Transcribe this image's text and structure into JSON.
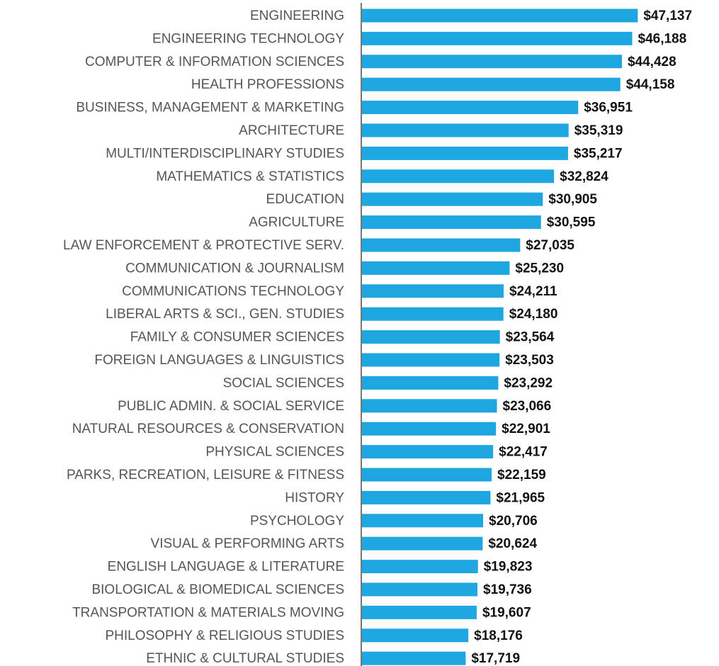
{
  "chart_data": {
    "type": "barh",
    "categories": [
      "ENGINEERING",
      "ENGINEERING TECHNOLOGY",
      "COMPUTER & INFORMATION SCIENCES",
      "HEALTH PROFESSIONS",
      "BUSINESS, MANAGEMENT & MARKETING",
      "ARCHITECTURE",
      "MULTI/INTERDISCIPLINARY STUDIES",
      "MATHEMATICS & STATISTICS",
      "EDUCATION",
      "AGRICULTURE",
      "LAW ENFORCEMENT & PROTECTIVE SERV.",
      "COMMUNICATION & JOURNALISM",
      "COMMUNICATIONS TECHNOLOGY",
      "LIBERAL ARTS & SCI., GEN. STUDIES",
      "FAMILY & CONSUMER SCIENCES",
      "FOREIGN LANGUAGES & LINGUISTICS",
      "SOCIAL SCIENCES",
      "PUBLIC ADMIN. & SOCIAL SERVICE",
      "NATURAL RESOURCES & CONSERVATION",
      "PHYSICAL SCIENCES",
      "PARKS, RECREATION, LEISURE & FITNESS",
      "HISTORY",
      "PSYCHOLOGY",
      "VISUAL & PERFORMING ARTS",
      "ENGLISH LANGUAGE & LITERATURE",
      "BIOLOGICAL & BIOMEDICAL SCIENCES",
      "TRANSPORTATION & MATERIALS MOVING",
      "PHILOSOPHY & RELIGIOUS STUDIES",
      "ETHNIC & CULTURAL STUDIES"
    ],
    "values": [
      47137,
      46188,
      44428,
      44158,
      36951,
      35319,
      35217,
      32824,
      30905,
      30595,
      27035,
      25230,
      24211,
      24180,
      23564,
      23503,
      23292,
      23066,
      22901,
      22417,
      22159,
      21965,
      20706,
      20624,
      19823,
      19736,
      19607,
      18176,
      17719
    ],
    "value_labels": [
      "$47,137",
      "$46,188",
      "$44,428",
      "$44,158",
      "$36,951",
      "$35,319",
      "$35,217",
      "$32,824",
      "$30,905",
      "$30,595",
      "$27,035",
      "$25,230",
      "$24,211",
      "$24,180",
      "$23,564",
      "$23,503",
      "$23,292",
      "$23,066",
      "$22,901",
      "$22,417",
      "$22,159",
      "$21,965",
      "$20,706",
      "$20,624",
      "$19,823",
      "$19,736",
      "$19,607",
      "$18,176",
      "$17,719"
    ],
    "color": "#1ea6e0",
    "xlim": [
      0,
      50000
    ]
  }
}
